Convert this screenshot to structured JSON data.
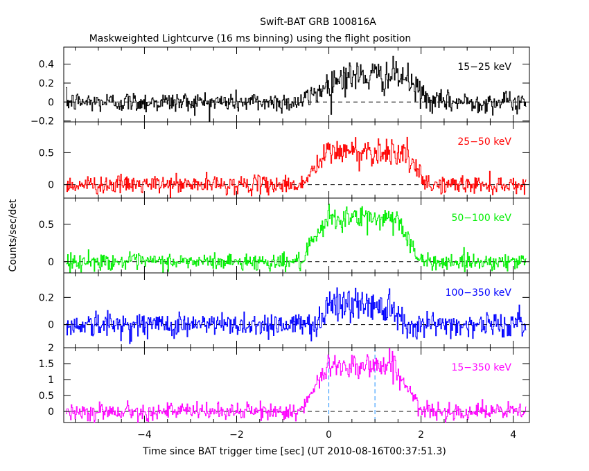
{
  "chart_data": {
    "type": "line",
    "title": "Swift-BAT GRB 100816A",
    "subtitle": "Maskweighted Lightcurve (16 ms binning) using the flight position",
    "xlabel": "Time since BAT trigger time [sec] (UT 2010-08-16T00:37:51.3)",
    "ylabel": "Counts/sec/det",
    "xlim": [
      -5.75,
      4.35
    ],
    "x_ticks": [
      -4,
      -2,
      0,
      2,
      4
    ],
    "x_tick_labels": [
      "−4",
      "−2",
      "0",
      "2",
      "4"
    ],
    "bin_width_sec": 0.016,
    "vertical_markers": [
      0,
      1.0
    ],
    "zero_line": true,
    "panels": [
      {
        "name": "15−25 keV",
        "color": "#000000",
        "ylim": [
          -0.21,
          0.58
        ],
        "y_ticks": [
          -0.2,
          0,
          0.2,
          0.4
        ],
        "y_tick_labels": [
          "−0.2",
          "0",
          "0.2",
          "0.4"
        ],
        "baseline_noise_sd": 0.055,
        "pulse": [
          {
            "t_start": -0.6,
            "t_rise": 0.25,
            "t_fall": 1.6,
            "t_end": 2.2,
            "peak": 0.27
          }
        ]
      },
      {
        "name": "25−50 keV",
        "color": "#ff0000",
        "ylim": [
          -0.21,
          0.98
        ],
        "y_ticks": [
          0,
          0.5
        ],
        "y_tick_labels": [
          "0",
          "0.5"
        ],
        "baseline_noise_sd": 0.07,
        "pulse": [
          {
            "t_start": -0.6,
            "t_rise": 0.0,
            "t_fall": 1.6,
            "t_end": 2.1,
            "peak": 0.52
          }
        ]
      },
      {
        "name": "50−100 keV",
        "color": "#00ee00",
        "ylim": [
          -0.15,
          0.85
        ],
        "y_ticks": [
          0,
          0.5
        ],
        "y_tick_labels": [
          "0",
          "0.5"
        ],
        "baseline_noise_sd": 0.055,
        "pulse": [
          {
            "t_start": -0.6,
            "t_rise": 0.0,
            "t_fall": 1.5,
            "t_end": 1.95,
            "peak": 0.58
          }
        ]
      },
      {
        "name": "100−350 keV",
        "color": "#0000ff",
        "ylim": [
          -0.17,
          0.38
        ],
        "y_ticks": [
          0,
          0.2
        ],
        "y_tick_labels": [
          "0",
          "0.2"
        ],
        "baseline_noise_sd": 0.045,
        "pulse": [
          {
            "t_start": -0.3,
            "t_rise": 0.0,
            "t_fall": 1.3,
            "t_end": 1.7,
            "peak": 0.15
          }
        ]
      },
      {
        "name": "15−350 keV",
        "color": "#ff00ff",
        "ylim": [
          -0.35,
          2.0
        ],
        "y_ticks": [
          0,
          0.5,
          1,
          1.5,
          2
        ],
        "y_tick_labels": [
          "0",
          "0.5",
          "1",
          "1.5",
          "2"
        ],
        "baseline_noise_sd": 0.13,
        "pulse": [
          {
            "t_start": -0.6,
            "t_rise": 0.0,
            "t_fall": 1.4,
            "t_end": 2.0,
            "peak": 1.45
          }
        ]
      }
    ]
  }
}
